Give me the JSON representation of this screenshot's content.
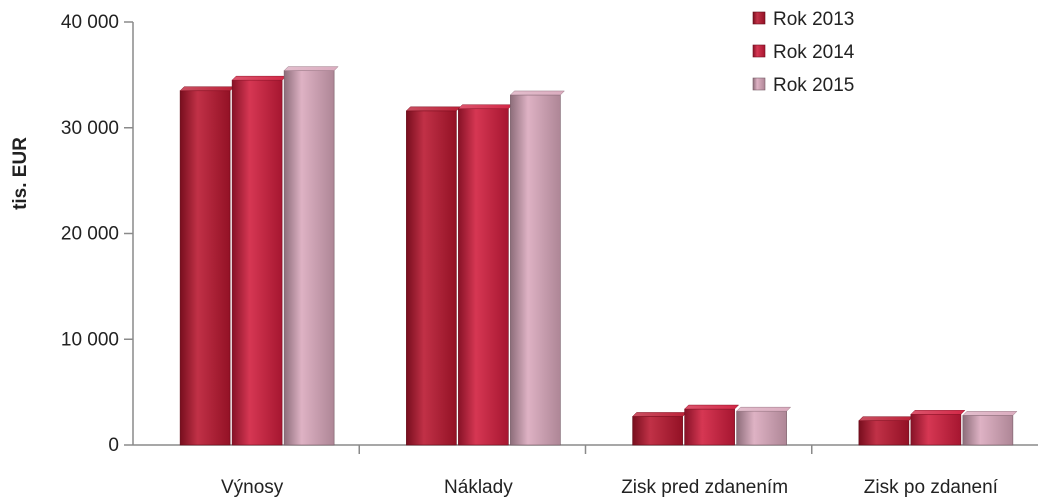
{
  "chart_data": {
    "type": "bar",
    "title": "",
    "xlabel": "",
    "ylabel": "tis. EUR",
    "ylim": [
      0,
      40000
    ],
    "yticks": [
      0,
      10000,
      20000,
      30000,
      40000
    ],
    "ytick_labels": [
      "0",
      "10 000",
      "20 000",
      "30 000",
      "40 000"
    ],
    "grid": false,
    "legend_position": "top-right",
    "categories": [
      "Výnosy",
      "Náklady",
      "Zisk pred zdanením",
      "Zisk po zdanení"
    ],
    "series": [
      {
        "name": "Rok 2013",
        "color": "#b8152e",
        "values": [
          33500,
          31600,
          2700,
          2300
        ]
      },
      {
        "name": "Rok 2014",
        "color": "#d01c3c",
        "values": [
          34500,
          31800,
          3400,
          2900
        ]
      },
      {
        "name": "Rok 2015",
        "color": "#d9a8bc",
        "values": [
          35400,
          33100,
          3200,
          2800
        ]
      }
    ]
  }
}
